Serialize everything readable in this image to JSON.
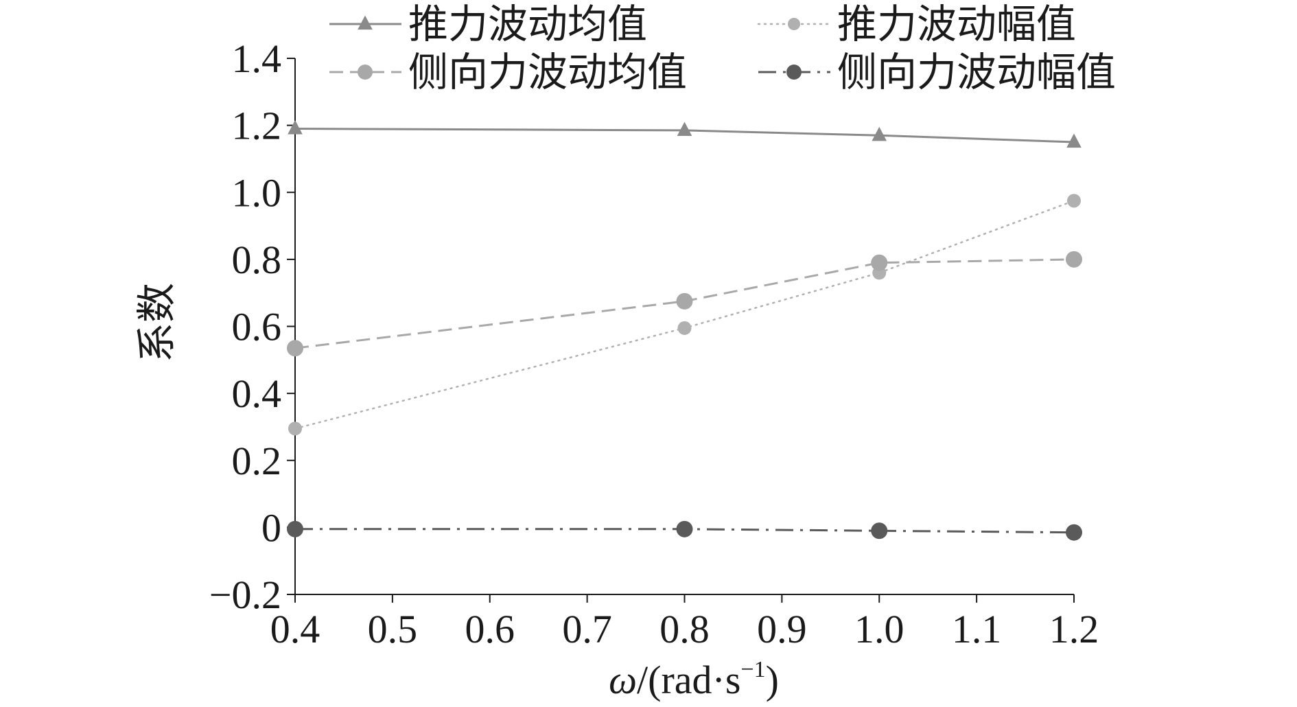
{
  "chart_data": {
    "type": "line",
    "xlabel": "ω/(rad·s⁻¹)",
    "xlabel_parts": {
      "omega": "ω",
      "unit_open": "/(rad·s",
      "exp": "−1",
      "unit_close": ")"
    },
    "ylabel": "系数",
    "x": [
      0.4,
      0.8,
      1.0,
      1.2
    ],
    "xlim": [
      0.4,
      1.2
    ],
    "ylim": [
      -0.2,
      1.4
    ],
    "xticks": [
      "0.4",
      "0.5",
      "0.6",
      "0.7",
      "0.8",
      "0.9",
      "1.0",
      "1.1",
      "1.2"
    ],
    "yticks": [
      "−0.2",
      "0",
      "0.2",
      "0.4",
      "0.6",
      "0.8",
      "1.0",
      "1.2",
      "1.4"
    ],
    "grid": false,
    "legend_position": "top",
    "series": [
      {
        "name": "推力波动均值",
        "values": [
          1.19,
          1.185,
          1.17,
          1.15
        ],
        "color": "#8a8a8a",
        "line_style": "solid",
        "marker": "triangle"
      },
      {
        "name": "推力波动幅值",
        "values": [
          0.295,
          0.595,
          0.76,
          0.975
        ],
        "color": "#b0b0b0",
        "line_style": "dotted",
        "marker": "circle"
      },
      {
        "name": "侧向力波动均值",
        "values": [
          0.535,
          0.675,
          0.79,
          0.8
        ],
        "color": "#a8a8a8",
        "line_style": "dashed",
        "marker": "circle"
      },
      {
        "name": "侧向力波动幅值",
        "values": [
          -0.005,
          -0.005,
          -0.01,
          -0.015
        ],
        "color": "#5a5a5a",
        "line_style": "dashdot",
        "marker": "circle"
      }
    ]
  }
}
